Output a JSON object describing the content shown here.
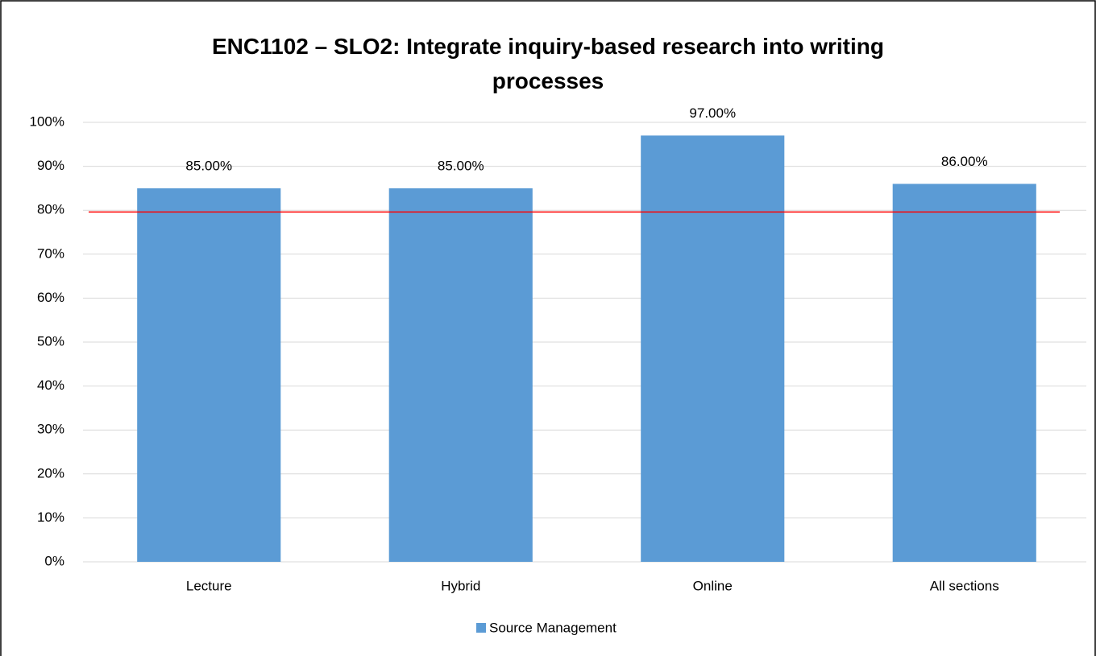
{
  "chart_data": {
    "type": "bar",
    "title": "ENC1102 – SLO2: Integrate inquiry-based research into writing processes",
    "categories": [
      "Lecture",
      "Hybrid",
      "Online",
      "All sections"
    ],
    "series": [
      {
        "name": "Source Management",
        "color": "#5b9bd5",
        "values": [
          85,
          85,
          97,
          86
        ],
        "value_labels": [
          "85.00%",
          "85.00%",
          "97.00%",
          "86.00%"
        ]
      }
    ],
    "ylim": [
      0,
      100
    ],
    "yticks": [
      {
        "value": 0,
        "label": "0%"
      },
      {
        "value": 10,
        "label": "10%"
      },
      {
        "value": 20,
        "label": "20%"
      },
      {
        "value": 30,
        "label": "30%"
      },
      {
        "value": 40,
        "label": "40%"
      },
      {
        "value": 50,
        "label": "50%"
      },
      {
        "value": 60,
        "label": "60%"
      },
      {
        "value": 70,
        "label": "70%"
      },
      {
        "value": 80,
        "label": "80%"
      },
      {
        "value": 90,
        "label": "90%"
      },
      {
        "value": 100,
        "label": "100%"
      }
    ],
    "grid": true,
    "legend": "bottom",
    "reference_line": {
      "value": 79.6,
      "color": "#ff0000"
    }
  }
}
